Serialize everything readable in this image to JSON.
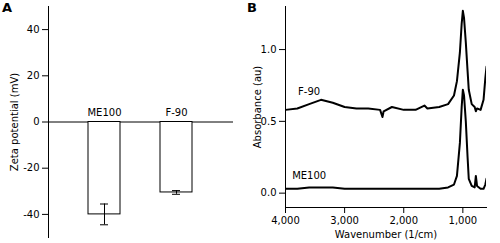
{
  "chart_data": [
    {
      "type": "bar",
      "title": "A",
      "y_label": "Zeta potential (mV)",
      "categories": [
        "ME100",
        "F-90"
      ],
      "values": [
        -40,
        -30.5
      ],
      "errors": [
        4.5,
        0.8
      ],
      "color": "#ffffff",
      "ylim": [
        -50,
        50
      ],
      "yticks": [
        -40,
        -20,
        0,
        20,
        40
      ],
      "tick_labels": "y",
      "grid": false
    },
    {
      "type": "line",
      "title": "B",
      "x_label": "Wavenumber (1/cm)",
      "y_label": "Absorbance (au)",
      "x": [
        4000,
        3800,
        3600,
        3400,
        3200,
        3000,
        2800,
        2600,
        2400,
        2360,
        2340,
        2200,
        2000,
        1800,
        1650,
        1600,
        1400,
        1250,
        1150,
        1100,
        1050,
        1020,
        1000,
        980,
        950,
        920,
        900,
        850,
        800,
        780,
        760,
        700,
        650,
        620,
        600
      ],
      "series": [
        {
          "name": "F-90",
          "color": "#000000",
          "values": [
            0.58,
            0.59,
            0.62,
            0.65,
            0.63,
            0.6,
            0.59,
            0.59,
            0.58,
            0.53,
            0.57,
            0.6,
            0.58,
            0.58,
            0.61,
            0.59,
            0.6,
            0.62,
            0.68,
            0.78,
            0.98,
            1.18,
            1.27,
            1.22,
            1.05,
            0.85,
            0.72,
            0.62,
            0.6,
            0.57,
            0.59,
            0.58,
            0.65,
            0.8,
            0.88
          ]
        },
        {
          "name": "ME100",
          "color": "#000000",
          "values": [
            0.03,
            0.03,
            0.04,
            0.04,
            0.04,
            0.03,
            0.03,
            0.03,
            0.03,
            0.03,
            0.03,
            0.03,
            0.03,
            0.03,
            0.03,
            0.03,
            0.03,
            0.04,
            0.06,
            0.12,
            0.35,
            0.6,
            0.72,
            0.68,
            0.5,
            0.25,
            0.1,
            0.05,
            0.04,
            0.12,
            0.05,
            0.03,
            0.03,
            0.06,
            0.1
          ]
        }
      ],
      "xlim": [
        4000,
        600
      ],
      "xticks": [
        {
          "value": 4000,
          "label": "4,000"
        },
        {
          "value": 3000,
          "label": "3,000"
        },
        {
          "value": 2000,
          "label": "2,000"
        },
        {
          "value": 1000,
          "label": "1,000"
        }
      ],
      "ylim": [
        -0.1,
        1.3
      ],
      "yticks": [
        {
          "value": 0,
          "label": "0.0"
        },
        {
          "value": 0.5,
          "label": "0.5"
        },
        {
          "value": 1,
          "label": "1.0"
        }
      ],
      "grid": false
    }
  ]
}
